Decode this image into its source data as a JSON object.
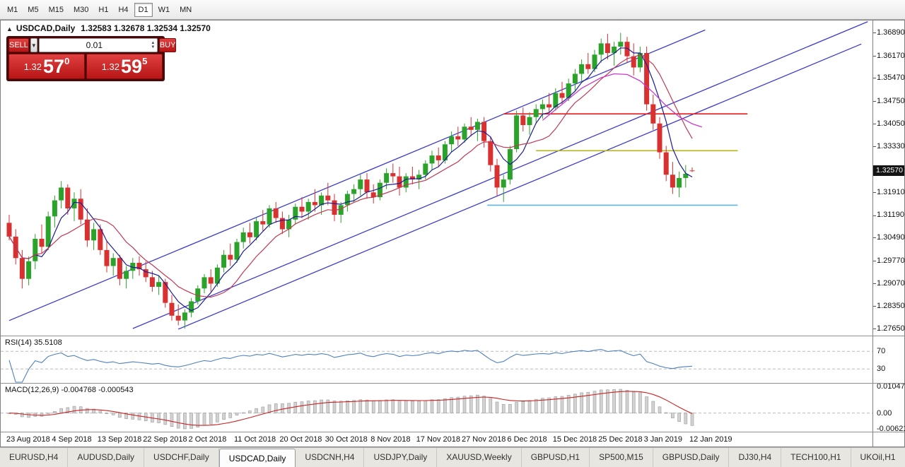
{
  "toolbar": {
    "timeframes": [
      "M1",
      "M5",
      "M15",
      "M30",
      "H1",
      "H4",
      "D1",
      "W1",
      "MN"
    ],
    "active": "D1"
  },
  "header": {
    "collapse_icon": "▲",
    "symbol": "USDCAD,Daily",
    "ohlc": "1.32583 1.32678 1.32534 1.32570"
  },
  "trade_panel": {
    "sell_label": "SELL",
    "buy_label": "BUY",
    "volume": "0.01",
    "sell_price": {
      "base": "1.32",
      "big": "57",
      "sup": "0"
    },
    "buy_price": {
      "base": "1.32",
      "big": "59",
      "sup": "5"
    }
  },
  "tabs": {
    "items": [
      "EURUSD,H4",
      "AUDUSD,Daily",
      "USDCHF,Daily",
      "USDCAD,Daily",
      "USDCNH,H4",
      "USDJPY,Daily",
      "XAUUSD,Weekly",
      "GBPUSD,H1",
      "SP500,M15",
      "GBPUSD,Daily",
      "DJ30,H4",
      "TECH100,H1",
      "UKOil,H1"
    ],
    "active": "USDCAD,Daily"
  },
  "colors": {
    "up": "#2ba32b",
    "down": "#d93030",
    "rsi": "#4f81bd",
    "level_dash": "#bbbbbb",
    "macd_hist": "#d2d2d2",
    "macd_hist_border": "#9b9b9b",
    "macd_signal": "#cc2222"
  },
  "chart_data": {
    "type": "candlestick",
    "symbol": "USDCAD",
    "timeframe": "Daily",
    "current_price_label": "1.32570",
    "price_axis": {
      "max": 1.3689,
      "min": 1.2765,
      "labels": [
        "1.36890",
        "1.36170",
        "1.35470",
        "1.34750",
        "1.34050",
        "1.33330",
        "1.32610",
        "1.31910",
        "1.31190",
        "1.30490",
        "1.29770",
        "1.29070",
        "1.28350",
        "1.27650"
      ]
    },
    "x_labels": [
      "23 Aug 2018",
      "4 Sep 2018",
      "13 Sep 2018",
      "22 Sep 2018",
      "2 Oct 2018",
      "11 Oct 2018",
      "20 Oct 2018",
      "30 Oct 2018",
      "8 Nov 2018",
      "17 Nov 2018",
      "27 Nov 2018",
      "6 Dec 2018",
      "15 Dec 2018",
      "25 Dec 2018",
      "3 Jan 2019",
      "12 Jan 2019"
    ],
    "x_label_indices": [
      0,
      7,
      14,
      21,
      28,
      35,
      42,
      49,
      56,
      63,
      70,
      77,
      84,
      91,
      98,
      105
    ],
    "candles": [
      [
        1.3095,
        1.312,
        1.304,
        1.3052
      ],
      [
        1.3052,
        1.3075,
        1.2965,
        1.2985
      ],
      [
        1.2985,
        1.301,
        1.289,
        1.292
      ],
      [
        1.292,
        1.299,
        1.29,
        1.2975
      ],
      [
        1.2975,
        1.306,
        1.295,
        1.3045
      ],
      [
        1.3045,
        1.309,
        1.3,
        1.302
      ],
      [
        1.302,
        1.313,
        1.301,
        1.3115
      ],
      [
        1.3115,
        1.318,
        1.308,
        1.3165
      ],
      [
        1.3165,
        1.3225,
        1.314,
        1.3205
      ],
      [
        1.3205,
        1.3215,
        1.312,
        1.314
      ],
      [
        1.314,
        1.319,
        1.31,
        1.317
      ],
      [
        1.317,
        1.32,
        1.309,
        1.3105
      ],
      [
        1.3105,
        1.314,
        1.302,
        1.304
      ],
      [
        1.304,
        1.3095,
        1.301,
        1.3075
      ],
      [
        1.3075,
        1.309,
        1.2995,
        1.301
      ],
      [
        1.301,
        1.304,
        1.294,
        1.296
      ],
      [
        1.296,
        1.3,
        1.293,
        1.2985
      ],
      [
        1.2985,
        1.2995,
        1.29,
        1.292
      ],
      [
        1.292,
        1.296,
        1.289,
        1.2945
      ],
      [
        1.2945,
        1.2985,
        1.292,
        1.297
      ],
      [
        1.297,
        1.299,
        1.293,
        1.295
      ],
      [
        1.295,
        1.2975,
        1.291,
        1.2925
      ],
      [
        1.2925,
        1.2945,
        1.288,
        1.2895
      ],
      [
        1.2895,
        1.293,
        1.287,
        1.291
      ],
      [
        1.291,
        1.292,
        1.283,
        1.2845
      ],
      [
        1.2845,
        1.287,
        1.279,
        1.2805
      ],
      [
        1.2805,
        1.284,
        1.2775,
        1.279
      ],
      [
        1.279,
        1.2825,
        1.2765,
        1.2815
      ],
      [
        1.2815,
        1.286,
        1.28,
        1.285
      ],
      [
        1.285,
        1.29,
        1.284,
        1.289
      ],
      [
        1.289,
        1.2935,
        1.2875,
        1.2925
      ],
      [
        1.2925,
        1.295,
        1.288,
        1.2905
      ],
      [
        1.2905,
        1.2965,
        1.2895,
        1.2955
      ],
      [
        1.2955,
        1.301,
        1.294,
        1.2995
      ],
      [
        1.2995,
        1.303,
        1.296,
        1.298
      ],
      [
        1.298,
        1.3045,
        1.297,
        1.3035
      ],
      [
        1.3035,
        1.308,
        1.3015,
        1.3065
      ],
      [
        1.3065,
        1.3095,
        1.303,
        1.305
      ],
      [
        1.305,
        1.311,
        1.304,
        1.31
      ],
      [
        1.31,
        1.3135,
        1.307,
        1.309
      ],
      [
        1.309,
        1.315,
        1.308,
        1.314
      ],
      [
        1.314,
        1.316,
        1.3095,
        1.311
      ],
      [
        1.311,
        1.313,
        1.306,
        1.3075
      ],
      [
        1.3075,
        1.312,
        1.305,
        1.3105
      ],
      [
        1.3105,
        1.3155,
        1.309,
        1.3145
      ],
      [
        1.3145,
        1.3175,
        1.311,
        1.313
      ],
      [
        1.313,
        1.317,
        1.3105,
        1.316
      ],
      [
        1.316,
        1.32,
        1.313,
        1.315
      ],
      [
        1.315,
        1.319,
        1.312,
        1.318
      ],
      [
        1.318,
        1.322,
        1.315,
        1.3165
      ],
      [
        1.3165,
        1.3185,
        1.31,
        1.312
      ],
      [
        1.312,
        1.316,
        1.3095,
        1.315
      ],
      [
        1.315,
        1.3195,
        1.313,
        1.3185
      ],
      [
        1.3185,
        1.3215,
        1.316,
        1.32
      ],
      [
        1.32,
        1.3245,
        1.318,
        1.323
      ],
      [
        1.323,
        1.325,
        1.317,
        1.319
      ],
      [
        1.319,
        1.3215,
        1.3155,
        1.3175
      ],
      [
        1.3175,
        1.323,
        1.3165,
        1.322
      ],
      [
        1.322,
        1.3265,
        1.32,
        1.325
      ],
      [
        1.325,
        1.328,
        1.322,
        1.324
      ],
      [
        1.324,
        1.327,
        1.318,
        1.3205
      ],
      [
        1.3205,
        1.325,
        1.319,
        1.324
      ],
      [
        1.324,
        1.327,
        1.3215,
        1.323
      ],
      [
        1.323,
        1.326,
        1.32,
        1.3245
      ],
      [
        1.3245,
        1.329,
        1.323,
        1.328
      ],
      [
        1.328,
        1.332,
        1.326,
        1.3305
      ],
      [
        1.3305,
        1.333,
        1.327,
        1.329
      ],
      [
        1.329,
        1.335,
        1.328,
        1.334
      ],
      [
        1.334,
        1.338,
        1.3315,
        1.3365
      ],
      [
        1.3365,
        1.3395,
        1.3335,
        1.3355
      ],
      [
        1.3355,
        1.3405,
        1.3345,
        1.3395
      ],
      [
        1.3395,
        1.3425,
        1.3365,
        1.3385
      ],
      [
        1.3385,
        1.342,
        1.335,
        1.341
      ],
      [
        1.341,
        1.3425,
        1.333,
        1.335
      ],
      [
        1.335,
        1.3365,
        1.3255,
        1.3275
      ],
      [
        1.3275,
        1.3295,
        1.318,
        1.3205
      ],
      [
        1.3205,
        1.3245,
        1.316,
        1.323
      ],
      [
        1.323,
        1.3335,
        1.3215,
        1.3325
      ],
      [
        1.3325,
        1.3445,
        1.3315,
        1.343
      ],
      [
        1.343,
        1.3455,
        1.338,
        1.34
      ],
      [
        1.34,
        1.344,
        1.337,
        1.3425
      ],
      [
        1.3425,
        1.3465,
        1.3405,
        1.345
      ],
      [
        1.345,
        1.348,
        1.342,
        1.3465
      ],
      [
        1.3465,
        1.35,
        1.344,
        1.3455
      ],
      [
        1.3455,
        1.3515,
        1.3445,
        1.35
      ],
      [
        1.35,
        1.3535,
        1.3465,
        1.3485
      ],
      [
        1.3485,
        1.3545,
        1.3475,
        1.353
      ],
      [
        1.353,
        1.3575,
        1.3505,
        1.356
      ],
      [
        1.356,
        1.3605,
        1.3535,
        1.359
      ],
      [
        1.359,
        1.3625,
        1.356,
        1.3575
      ],
      [
        1.3575,
        1.3635,
        1.3565,
        1.362
      ],
      [
        1.362,
        1.367,
        1.3595,
        1.3655
      ],
      [
        1.3655,
        1.3685,
        1.3605,
        1.3625
      ],
      [
        1.3625,
        1.366,
        1.3585,
        1.3645
      ],
      [
        1.3645,
        1.3688,
        1.362,
        1.366
      ],
      [
        1.366,
        1.3675,
        1.3595,
        1.3615
      ],
      [
        1.3615,
        1.3655,
        1.3555,
        1.358
      ],
      [
        1.358,
        1.3645,
        1.3565,
        1.3625
      ],
      [
        1.3625,
        1.3645,
        1.3445,
        1.3465
      ],
      [
        1.3465,
        1.3495,
        1.3385,
        1.3405
      ],
      [
        1.3405,
        1.3425,
        1.3295,
        1.3315
      ],
      [
        1.3315,
        1.3335,
        1.3225,
        1.3245
      ],
      [
        1.3245,
        1.3285,
        1.3185,
        1.3205
      ],
      [
        1.3205,
        1.3255,
        1.3175,
        1.3235
      ],
      [
        1.3235,
        1.3275,
        1.3205,
        1.3248
      ],
      [
        1.32583,
        1.32678,
        1.32534,
        1.3257
      ]
    ],
    "overlays": {
      "ma": {
        "fast_period": 5,
        "fast_color": "#1c1c99",
        "slow_period": 10,
        "slow_color": "#c13a52"
      },
      "trendlines": [
        {
          "p1": [
            0,
            1.279
          ],
          "p2": [
            107,
            1.3697
          ],
          "color": "#3c3ccc"
        },
        {
          "p1": [
            26,
            1.2763
          ],
          "p2": [
            131,
            1.3653
          ],
          "color": "#3c3ccc"
        },
        {
          "p1": [
            19,
            1.2765
          ],
          "p2": [
            132,
            1.3723
          ],
          "color": "#3c3ccc"
        }
      ],
      "hlines": [
        {
          "price": 1.3435,
          "from": 76,
          "to": 113.5,
          "color": "#e11d1d"
        },
        {
          "price": 1.332,
          "from": 81,
          "to": 112,
          "color": "#b3b520"
        },
        {
          "price": 1.315,
          "from": 73.5,
          "to": 112,
          "color": "#5bb7ea"
        }
      ],
      "curve": {
        "color": "#c93ac9",
        "points": [
          [
            82,
            1.3415
          ],
          [
            85,
            1.3465
          ],
          [
            88,
            1.3515
          ],
          [
            91,
            1.3548
          ],
          [
            93,
            1.356
          ],
          [
            95,
            1.3558
          ],
          [
            97,
            1.3538
          ],
          [
            99,
            1.3502
          ],
          [
            101,
            1.346
          ],
          [
            103,
            1.3426
          ],
          [
            105,
            1.3404
          ],
          [
            106.5,
            1.3394
          ]
        ]
      }
    },
    "rsi": {
      "label": "RSI(14) 35.5108",
      "period": 14,
      "value": 35.5108,
      "levels": [
        70,
        30
      ]
    },
    "macd": {
      "label": "MACD(12,26,9) -0.004768 -0.000543",
      "fast": 12,
      "slow": 26,
      "signal": 9,
      "main_value": -0.004768,
      "signal_value": -0.000543,
      "max": 0.010474,
      "min": -0.006218,
      "axis_labels": [
        "0.010474",
        "0.00",
        "-0.006218"
      ]
    }
  }
}
